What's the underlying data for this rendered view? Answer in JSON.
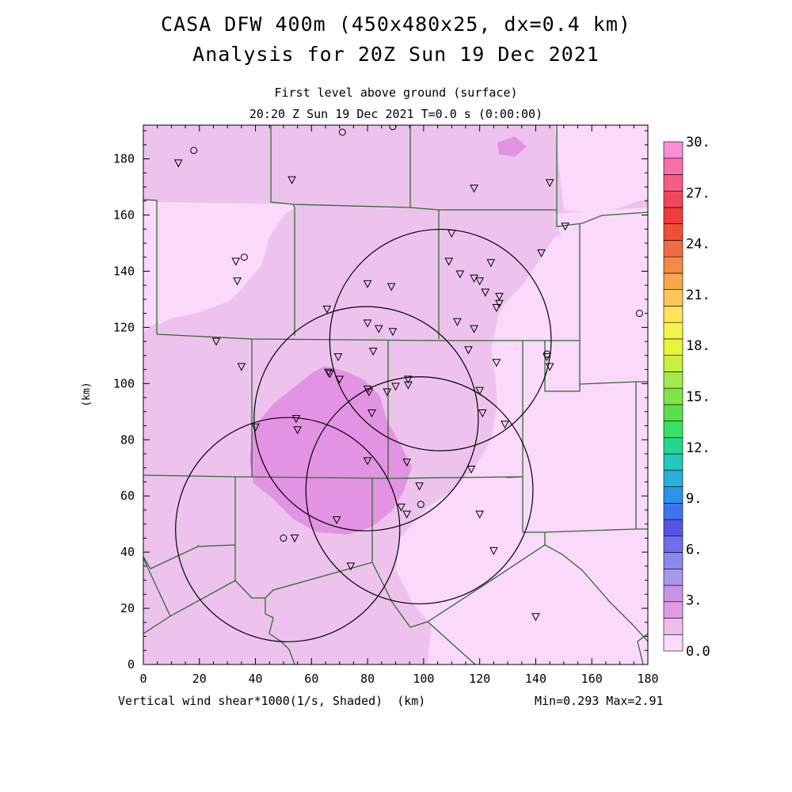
{
  "header": {
    "title_line1": "CASA DFW 400m (450x480x25, dx=0.4 km)",
    "title_line2": "Analysis for 20Z Sun 19 Dec 2021",
    "subtitle_line1": "First level above ground (surface)",
    "subtitle_line2": "20:20 Z Sun 19 Dec 2021   T=0.0 s (0:00:00)"
  },
  "axes": {
    "x_ticks": [
      "0",
      "20",
      "40",
      "60",
      "80",
      "100",
      "120",
      "140",
      "160",
      "180"
    ],
    "y_ticks": [
      "0",
      "20",
      "40",
      "60",
      "80",
      "100",
      "120",
      "140",
      "160",
      "180"
    ],
    "y_label": "(km)",
    "x_unit": "(km)",
    "xlim": [
      0,
      180
    ],
    "ylim": [
      0,
      192
    ]
  },
  "footer": {
    "field_label": "Vertical wind shear*1000(1/s, Shaded)",
    "x_unit": "(km)",
    "minmax": "Min=0.293 Max=2.91"
  },
  "colorbar": {
    "labels": [
      "30.",
      "27.",
      "24.",
      "21.",
      "18.",
      "15.",
      "12.",
      "9.",
      "6.",
      "3.",
      "0.0"
    ],
    "colors": [
      "#fbd9fb",
      "#edbdee",
      "#e29be2",
      "#c993e8",
      "#a997ec",
      "#8c89ec",
      "#706fea",
      "#5655e3",
      "#3f72ef",
      "#2f92e9",
      "#27b0d8",
      "#24c6bd",
      "#22d68e",
      "#37e164",
      "#59e14c",
      "#7ee548",
      "#a4e84c",
      "#c8ee42",
      "#e5f53a",
      "#f4f54a",
      "#fde25a",
      "#fbc558",
      "#f6a84b",
      "#f38a48",
      "#f06d42",
      "#ef5035",
      "#f03c3c",
      "#f2465d",
      "#f55d84",
      "#f66eaa",
      "#f98dd9"
    ]
  },
  "map_colors": {
    "level0": "#fbd9fb",
    "level1": "#edc3ee",
    "level2": "#e393e3",
    "boundary": "#2e6b2e"
  },
  "station_symbols": {
    "triangles": [
      [
        12.5,
        178.5
      ],
      [
        53,
        172.5
      ],
      [
        118,
        169.5
      ],
      [
        145,
        171.5
      ],
      [
        150.5,
        156
      ],
      [
        110,
        153.5
      ],
      [
        142,
        146.5
      ],
      [
        33,
        143.5
      ],
      [
        109,
        143.5
      ],
      [
        124,
        143
      ],
      [
        113,
        139
      ],
      [
        118,
        137.5
      ],
      [
        120,
        136.5
      ],
      [
        33.5,
        136.5
      ],
      [
        80,
        135.5
      ],
      [
        88.5,
        134.5
      ],
      [
        122,
        132.5
      ],
      [
        127,
        131
      ],
      [
        127,
        128.5
      ],
      [
        126,
        127
      ],
      [
        65.5,
        126.5
      ],
      [
        80,
        121.5
      ],
      [
        84,
        119.5
      ],
      [
        89,
        118.5
      ],
      [
        112,
        122
      ],
      [
        118,
        119.5
      ],
      [
        26,
        115
      ],
      [
        69.5,
        109.5
      ],
      [
        82,
        111.5
      ],
      [
        116,
        112
      ],
      [
        144,
        109.5
      ],
      [
        126,
        107.5
      ],
      [
        145,
        106
      ],
      [
        35,
        106
      ],
      [
        66,
        104
      ],
      [
        66.5,
        103.5
      ],
      [
        70,
        101.5
      ],
      [
        94.5,
        101.5
      ],
      [
        94.5,
        99.5
      ],
      [
        90,
        99
      ],
      [
        80,
        98
      ],
      [
        80.5,
        97
      ],
      [
        87,
        97
      ],
      [
        120,
        97.5
      ],
      [
        54.5,
        87.5
      ],
      [
        55,
        83.5
      ],
      [
        40,
        84.5
      ],
      [
        81.5,
        89.5
      ],
      [
        121,
        89.5
      ],
      [
        129,
        85.5
      ],
      [
        80,
        72.5
      ],
      [
        94,
        72
      ],
      [
        117,
        69.5
      ],
      [
        98.5,
        63.5
      ],
      [
        92,
        56
      ],
      [
        94,
        53.5
      ],
      [
        120,
        53.5
      ],
      [
        69,
        51.5
      ],
      [
        54,
        45
      ],
      [
        125,
        40.5
      ],
      [
        74,
        35
      ],
      [
        140,
        17
      ]
    ],
    "circles": [
      [
        18,
        183
      ],
      [
        71,
        189.5
      ],
      [
        89,
        191.5
      ],
      [
        36,
        145
      ],
      [
        177,
        125
      ],
      [
        144,
        110.5
      ],
      [
        99,
        57
      ],
      [
        50,
        45
      ]
    ]
  },
  "radar_rings": [
    {
      "cx": 106,
      "cy": 115.5,
      "r": 39.5
    },
    {
      "cx": 79.5,
      "cy": 87.5,
      "r": 40
    },
    {
      "cx": 98.5,
      "cy": 62,
      "r": 40.5
    },
    {
      "cx": 51.5,
      "cy": 48,
      "r": 40
    }
  ]
}
